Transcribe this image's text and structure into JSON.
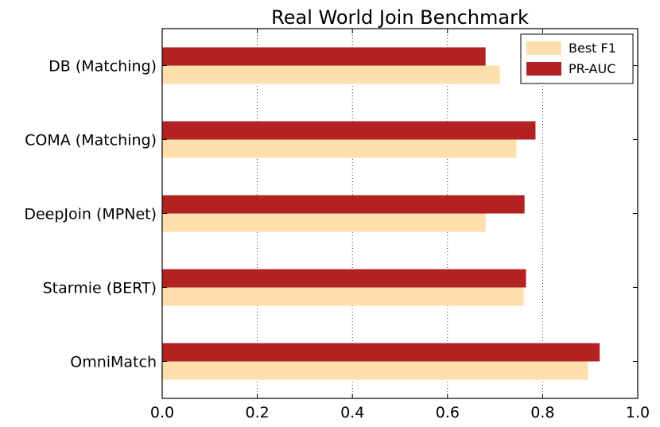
{
  "chart_data": {
    "type": "bar",
    "orientation": "horizontal",
    "title": "Real World Join Benchmark",
    "xlabel": "",
    "ylabel": "",
    "xlim": [
      0,
      1.0
    ],
    "xticks": [
      "0.0",
      "0.2",
      "0.4",
      "0.6",
      "0.8",
      "1.0"
    ],
    "grid": "vertical dotted",
    "legend_position": "top-right",
    "categories": [
      "DB (Matching)",
      "COMA (Matching)",
      "DeepJoin (MPNet)",
      "Starmie (BERT)",
      "OmniMatch"
    ],
    "series": [
      {
        "name": "Best F1",
        "color": "#ffdead",
        "values": [
          0.71,
          0.745,
          0.68,
          0.76,
          0.895
        ]
      },
      {
        "name": "PR-AUC",
        "color": "#b22222",
        "values": [
          0.68,
          0.785,
          0.762,
          0.765,
          0.92
        ]
      }
    ]
  }
}
